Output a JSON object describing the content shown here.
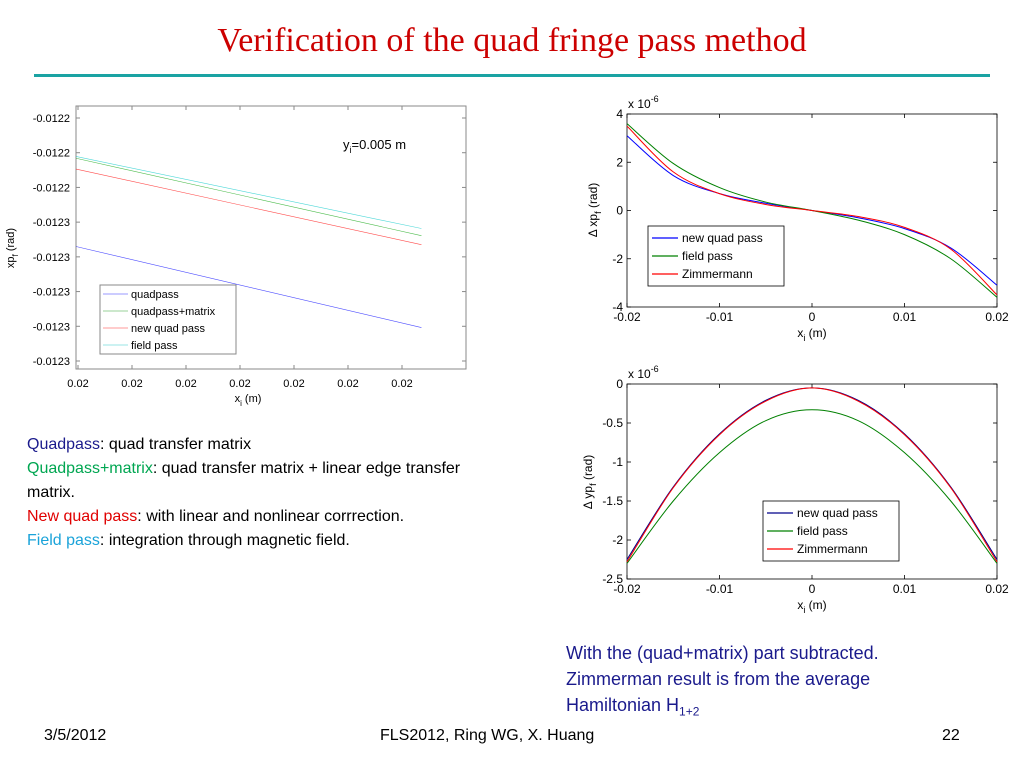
{
  "slide": {
    "title": "Verification of the quad fringe pass method",
    "accent_color": "#1aa3a3",
    "title_color": "#cc0000"
  },
  "description": [
    {
      "key": "Quadpass",
      "key_color": "#1a1a8c",
      "text": ": quad transfer matrix"
    },
    {
      "key": "Quadpass+matrix",
      "key_color": "#00a651",
      "text": ": quad transfer matrix + linear edge transfer matrix."
    },
    {
      "key": "New quad pass",
      "key_color": "#e00000",
      "text": ": with linear and nonlinear corrrection."
    },
    {
      "key": "Field pass",
      "key_color": "#1aa3d9",
      "text": ": integration through magnetic field."
    }
  ],
  "note": {
    "line1": "With the (quad+matrix) part subtracted.",
    "line2": "Zimmerman result is from the average",
    "line3": "Hamiltonian H",
    "line3_sub": "1+2"
  },
  "footer": {
    "date": "3/5/2012",
    "center": "FLS2012, Ring WG, X. Huang",
    "page": "22"
  },
  "chart_data": [
    {
      "type": "line",
      "annotation": "yᵢ=0.005 m",
      "annotation_main": "y",
      "annotation_sub": "i",
      "annotation_rest": "=0.005 m",
      "xlabel_main": "x",
      "xlabel_sub": "i",
      "xlabel_rest": " (m)",
      "ylabel_main": "xp",
      "ylabel_sub": "f",
      "ylabel_rest": " (rad)",
      "x_tick_labels": [
        "0.02",
        "0.02",
        "0.02",
        "0.02",
        "0.02",
        "0.02",
        "0.02"
      ],
      "y_tick_labels": [
        "-0.0122",
        "-0.0122",
        "-0.0122",
        "-0.0123",
        "-0.0123",
        "-0.0123",
        "-0.0123",
        "-0.0123"
      ],
      "legend": [
        "quadpass",
        "quadpass+matrix",
        "new quad pass",
        "field pass"
      ],
      "legend_placement": "bottom-left",
      "grid": false,
      "series": [
        {
          "name": "quadpass",
          "color": "#0000ff",
          "x": [
            0,
            1
          ],
          "y": [
            3.4,
            1.15
          ]
        },
        {
          "name": "quadpass+matrix",
          "color": "#00a000",
          "x": [
            0,
            1
          ],
          "y": [
            5.85,
            3.7
          ]
        },
        {
          "name": "new quad pass",
          "color": "#ff0000",
          "x": [
            0,
            1
          ],
          "y": [
            5.55,
            3.45
          ]
        },
        {
          "name": "field pass",
          "color": "#00c8c8",
          "x": [
            0,
            1
          ],
          "y": [
            5.9,
            3.9
          ]
        }
      ],
      "xlim": [
        0,
        1.1
      ],
      "ylim": [
        0,
        7.3
      ]
    },
    {
      "type": "line",
      "exponent_label": "x 10",
      "exponent_value": "-6",
      "xlabel_main": "x",
      "xlabel_sub": "i",
      "xlabel_rest": " (m)",
      "ylabel_main": "Δ xp",
      "ylabel_sub": "f",
      "ylabel_rest": " (rad)",
      "xlim": [
        -0.02,
        0.02
      ],
      "ylim": [
        -4,
        4
      ],
      "x_ticks": [
        -0.02,
        -0.01,
        0,
        0.01,
        0.02
      ],
      "x_tick_labels": [
        "-0.02",
        "-0.01",
        "0",
        "0.01",
        "0.02"
      ],
      "y_ticks": [
        4,
        2,
        0,
        -2,
        -4
      ],
      "y_tick_labels": [
        "4",
        "2",
        "0",
        "-2",
        "-4"
      ],
      "legend_placement": "bottom-left",
      "grid": false,
      "series": [
        {
          "name": "new quad pass",
          "color": "#0000ff",
          "x": [
            -0.02,
            -0.015,
            -0.01,
            -0.005,
            0,
            0.005,
            0.01,
            0.015,
            0.02
          ],
          "y": [
            3.1,
            1.45,
            0.7,
            0.3,
            0,
            -0.3,
            -0.75,
            -1.55,
            -3.1
          ]
        },
        {
          "name": "field pass",
          "color": "#008000",
          "x": [
            -0.02,
            -0.015,
            -0.01,
            -0.005,
            0,
            0.005,
            0.01,
            0.015,
            0.02
          ],
          "y": [
            3.6,
            1.95,
            0.95,
            0.35,
            0,
            -0.4,
            -1.0,
            -2.0,
            -3.6
          ]
        },
        {
          "name": "Zimmermann",
          "color": "#ff0000",
          "x": [
            -0.02,
            -0.015,
            -0.01,
            -0.005,
            0,
            0.005,
            0.01,
            0.015,
            0.02
          ],
          "y": [
            3.5,
            1.6,
            0.7,
            0.25,
            0,
            -0.25,
            -0.7,
            -1.6,
            -3.5
          ]
        }
      ]
    },
    {
      "type": "line",
      "exponent_label": "x 10",
      "exponent_value": "-6",
      "xlabel_main": "x",
      "xlabel_sub": "i",
      "xlabel_rest": " (m)",
      "ylabel_main": "Δ yp",
      "ylabel_sub": "f",
      "ylabel_rest": " (rad)",
      "xlim": [
        -0.02,
        0.02
      ],
      "ylim": [
        -2.5,
        0
      ],
      "x_ticks": [
        -0.02,
        -0.01,
        0,
        0.01,
        0.02
      ],
      "x_tick_labels": [
        "-0.02",
        "-0.01",
        "0",
        "0.01",
        "0.02"
      ],
      "y_ticks": [
        0,
        -0.5,
        -1,
        -1.5,
        -2,
        -2.5
      ],
      "y_tick_labels": [
        "0",
        "-0.5",
        "-1",
        "-1.5",
        "-2",
        "-2.5"
      ],
      "legend_placement": "bottom-right",
      "grid": false,
      "series": [
        {
          "name": "new quad pass",
          "color": "#00008b",
          "x": [
            -0.02,
            -0.015,
            -0.01,
            -0.005,
            0,
            0.005,
            0.01,
            0.015,
            0.02
          ],
          "y": [
            -2.25,
            -1.32,
            -0.64,
            -0.21,
            -0.05,
            -0.21,
            -0.64,
            -1.32,
            -2.25
          ]
        },
        {
          "name": "field pass",
          "color": "#008000",
          "x": [
            -0.02,
            -0.015,
            -0.01,
            -0.005,
            0,
            0.005,
            0.01,
            0.015,
            0.02
          ],
          "y": [
            -2.3,
            -1.5,
            -0.88,
            -0.47,
            -0.33,
            -0.47,
            -0.88,
            -1.5,
            -2.3
          ]
        },
        {
          "name": "Zimmermann",
          "color": "#ff0000",
          "x": [
            -0.02,
            -0.015,
            -0.01,
            -0.005,
            0,
            0.005,
            0.01,
            0.015,
            0.02
          ],
          "y": [
            -2.28,
            -1.33,
            -0.65,
            -0.22,
            -0.05,
            -0.22,
            -0.65,
            -1.33,
            -2.28
          ]
        }
      ]
    }
  ]
}
